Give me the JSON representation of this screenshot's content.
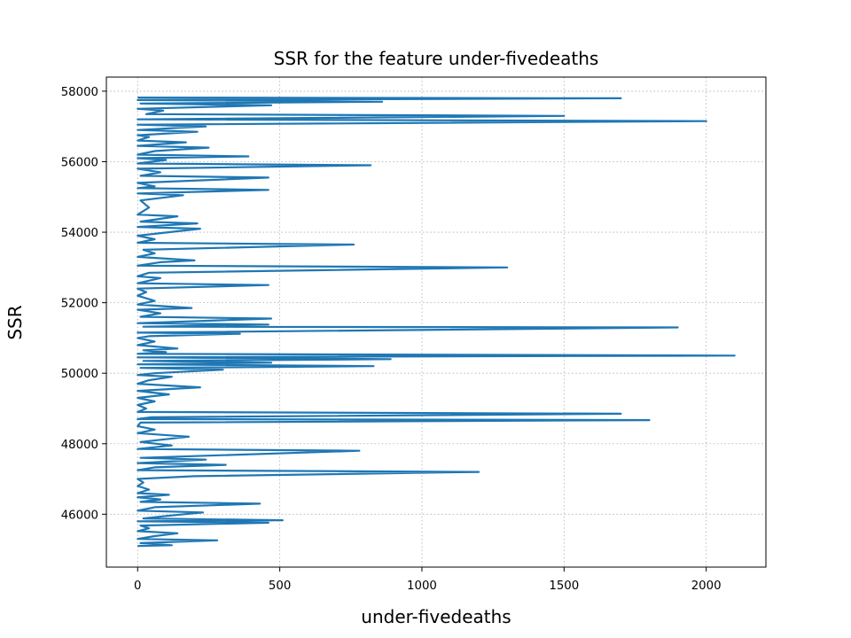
{
  "chart_data": {
    "type": "line",
    "title": "SSR for the feature under-fivedeaths",
    "xlabel": "under-fivedeaths",
    "ylabel": "SSR",
    "xlim": [
      -110,
      2210
    ],
    "ylim": [
      44500,
      58400
    ],
    "xticks": [
      0,
      500,
      1000,
      1500,
      2000
    ],
    "yticks": [
      46000,
      48000,
      50000,
      52000,
      54000,
      56000,
      58000
    ],
    "grid": true,
    "series_color": "#1f77b4",
    "series": [
      {
        "points": [
          [
            0,
            45100
          ],
          [
            120,
            45120
          ],
          [
            10,
            45180
          ],
          [
            280,
            45260
          ],
          [
            0,
            45300
          ],
          [
            60,
            45380
          ],
          [
            140,
            45460
          ],
          [
            0,
            45520
          ],
          [
            40,
            45600
          ],
          [
            10,
            45680
          ],
          [
            460,
            45760
          ],
          [
            0,
            45800
          ],
          [
            510,
            45830
          ],
          [
            20,
            45880
          ],
          [
            100,
            45950
          ],
          [
            230,
            46050
          ],
          [
            0,
            46100
          ],
          [
            60,
            46200
          ],
          [
            430,
            46300
          ],
          [
            10,
            46350
          ],
          [
            80,
            46420
          ],
          [
            0,
            46480
          ],
          [
            110,
            46550
          ],
          [
            0,
            46600
          ],
          [
            40,
            46700
          ],
          [
            0,
            46800
          ],
          [
            20,
            46900
          ],
          [
            0,
            47000
          ],
          [
            200,
            47080
          ],
          [
            1200,
            47200
          ],
          [
            0,
            47250
          ],
          [
            60,
            47330
          ],
          [
            310,
            47400
          ],
          [
            0,
            47450
          ],
          [
            240,
            47550
          ],
          [
            10,
            47600
          ],
          [
            780,
            47800
          ],
          [
            0,
            47850
          ],
          [
            120,
            47950
          ],
          [
            10,
            48050
          ],
          [
            180,
            48200
          ],
          [
            0,
            48300
          ],
          [
            60,
            48400
          ],
          [
            0,
            48500
          ],
          [
            10,
            48600
          ],
          [
            1800,
            48670
          ],
          [
            0,
            48700
          ],
          [
            50,
            48750
          ],
          [
            1700,
            48850
          ],
          [
            0,
            48900
          ],
          [
            30,
            49000
          ],
          [
            0,
            49100
          ],
          [
            60,
            49200
          ],
          [
            0,
            49300
          ],
          [
            110,
            49400
          ],
          [
            0,
            49500
          ],
          [
            220,
            49600
          ],
          [
            0,
            49700
          ],
          [
            40,
            49800
          ],
          [
            120,
            49900
          ],
          [
            0,
            49950
          ],
          [
            60,
            50000
          ],
          [
            300,
            50100
          ],
          [
            10,
            50150
          ],
          [
            830,
            50200
          ],
          [
            0,
            50250
          ],
          [
            470,
            50300
          ],
          [
            20,
            50350
          ],
          [
            890,
            50400
          ],
          [
            0,
            50450
          ],
          [
            1100,
            50480
          ],
          [
            2100,
            50500
          ],
          [
            0,
            50550
          ],
          [
            100,
            50600
          ],
          [
            20,
            50650
          ],
          [
            140,
            50700
          ],
          [
            0,
            50800
          ],
          [
            60,
            50900
          ],
          [
            0,
            51000
          ],
          [
            40,
            51050
          ],
          [
            360,
            51120
          ],
          [
            0,
            51150
          ],
          [
            1900,
            51300
          ],
          [
            20,
            51320
          ],
          [
            460,
            51380
          ],
          [
            0,
            51420
          ],
          [
            470,
            51550
          ],
          [
            10,
            51600
          ],
          [
            80,
            51700
          ],
          [
            0,
            51800
          ],
          [
            190,
            51850
          ],
          [
            0,
            51950
          ],
          [
            60,
            52050
          ],
          [
            0,
            52200
          ],
          [
            30,
            52300
          ],
          [
            0,
            52400
          ],
          [
            460,
            52500
          ],
          [
            0,
            52550
          ],
          [
            80,
            52700
          ],
          [
            0,
            52750
          ],
          [
            40,
            52850
          ],
          [
            1300,
            53000
          ],
          [
            0,
            53050
          ],
          [
            80,
            53150
          ],
          [
            200,
            53200
          ],
          [
            0,
            53300
          ],
          [
            60,
            53400
          ],
          [
            20,
            53500
          ],
          [
            760,
            53650
          ],
          [
            0,
            53700
          ],
          [
            60,
            53800
          ],
          [
            0,
            53900
          ],
          [
            220,
            54100
          ],
          [
            0,
            54150
          ],
          [
            210,
            54250
          ],
          [
            10,
            54300
          ],
          [
            140,
            54450
          ],
          [
            0,
            54500
          ],
          [
            40,
            54700
          ],
          [
            10,
            54900
          ],
          [
            160,
            55050
          ],
          [
            0,
            55100
          ],
          [
            460,
            55200
          ],
          [
            0,
            55250
          ],
          [
            60,
            55300
          ],
          [
            0,
            55400
          ],
          [
            460,
            55550
          ],
          [
            10,
            55600
          ],
          [
            80,
            55700
          ],
          [
            0,
            55800
          ],
          [
            820,
            55900
          ],
          [
            0,
            55950
          ],
          [
            100,
            56050
          ],
          [
            0,
            56100
          ],
          [
            390,
            56150
          ],
          [
            0,
            56200
          ],
          [
            60,
            56300
          ],
          [
            250,
            56400
          ],
          [
            0,
            56450
          ],
          [
            170,
            56550
          ],
          [
            0,
            56600
          ],
          [
            40,
            56700
          ],
          [
            0,
            56750
          ],
          [
            210,
            56850
          ],
          [
            0,
            56900
          ],
          [
            240,
            57000
          ],
          [
            0,
            57050
          ],
          [
            2000,
            57150
          ],
          [
            0,
            57200
          ],
          [
            1500,
            57300
          ],
          [
            30,
            57350
          ],
          [
            90,
            57450
          ],
          [
            0,
            57500
          ],
          [
            470,
            57600
          ],
          [
            10,
            57650
          ],
          [
            860,
            57700
          ],
          [
            0,
            57750
          ],
          [
            1700,
            57800
          ],
          [
            0,
            57820
          ]
        ]
      }
    ]
  }
}
